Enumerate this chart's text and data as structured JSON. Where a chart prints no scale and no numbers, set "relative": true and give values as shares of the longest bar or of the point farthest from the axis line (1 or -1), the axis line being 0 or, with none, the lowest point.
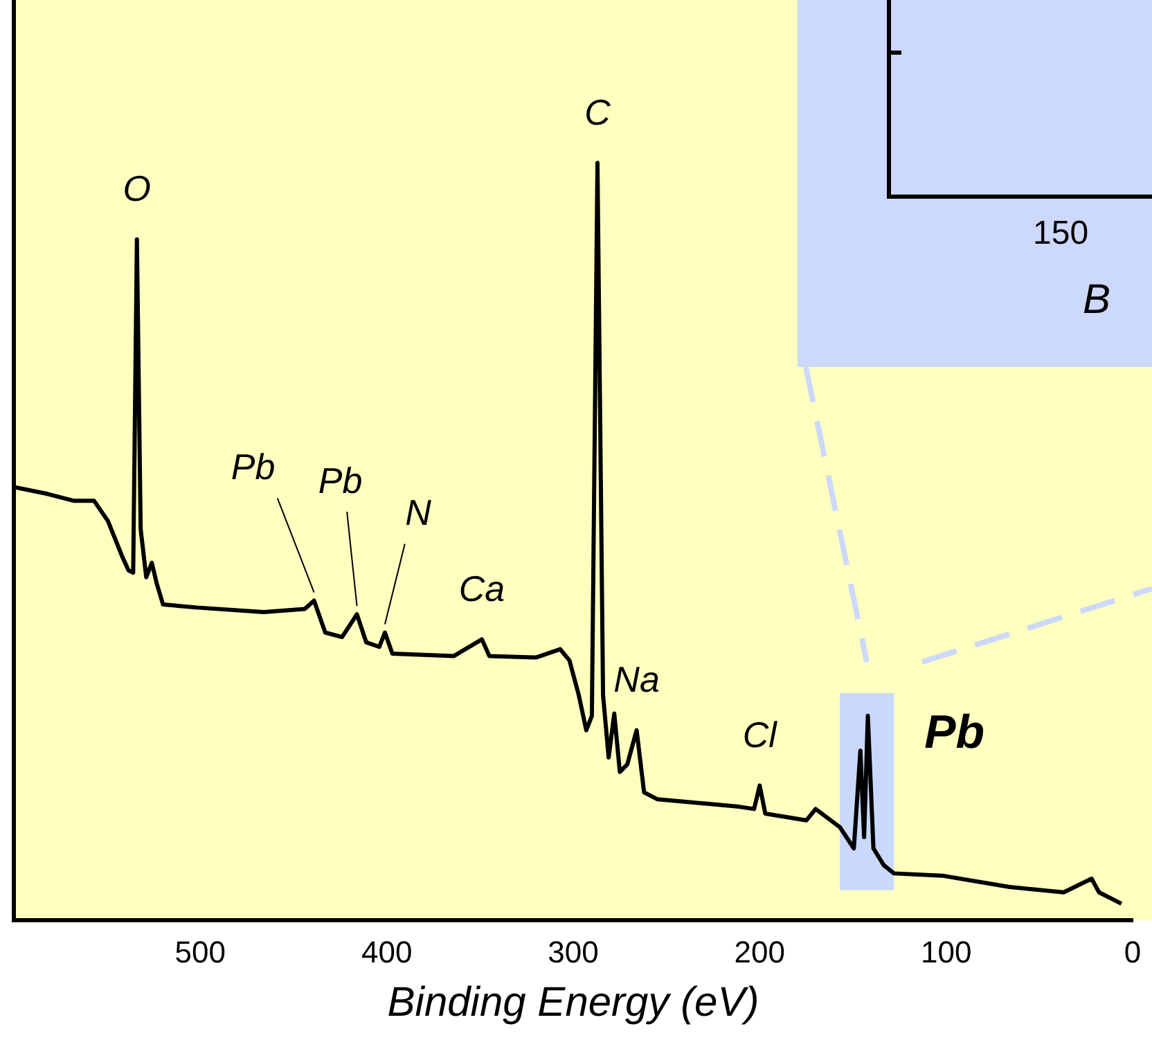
{
  "chart_data": [
    {
      "type": "line",
      "xlabel": "Binding Energy (eV)",
      "relative": true,
      "xlim": [
        600,
        0
      ],
      "xticks": [
        500,
        400,
        300,
        200,
        100,
        0
      ],
      "grid": false,
      "legend": false,
      "tick_labels": "x",
      "marker": "none",
      "line_style": "solid",
      "series": [
        {
          "color": "#000000",
          "x": [
            600,
            582,
            568,
            557,
            549.5,
            542,
            538.5,
            536,
            534,
            532,
            529,
            526,
            523.3,
            520,
            502,
            466,
            444,
            439,
            433,
            424,
            416,
            411,
            404,
            401,
            397,
            364,
            349,
            345,
            320,
            307,
            302,
            297,
            293,
            290,
            287,
            284,
            281,
            278,
            275,
            271,
            266,
            262,
            255,
            211,
            203,
            200,
            197,
            175,
            170,
            157,
            149.5,
            146,
            144,
            142,
            139,
            133.5,
            128,
            102,
            66,
            37,
            22,
            18,
            6
          ],
          "values": [
            0.572,
            0.563,
            0.554,
            0.554,
            0.527,
            0.481,
            0.462,
            0.459,
            0.899,
            0.517,
            0.453,
            0.472,
            0.444,
            0.417,
            0.413,
            0.407,
            0.411,
            0.422,
            0.38,
            0.374,
            0.404,
            0.367,
            0.361,
            0.38,
            0.352,
            0.349,
            0.371,
            0.349,
            0.347,
            0.358,
            0.343,
            0.297,
            0.251,
            0.27,
            1.0,
            0.297,
            0.215,
            0.273,
            0.196,
            0.206,
            0.251,
            0.169,
            0.16,
            0.15,
            0.147,
            0.178,
            0.141,
            0.132,
            0.147,
            0.123,
            0.095,
            0.224,
            0.11,
            0.27,
            0.095,
            0.073,
            0.062,
            0.059,
            0.044,
            0.037,
            0.055,
            0.037,
            0.022
          ]
        }
      ],
      "bands": [
        {
          "axis": "x",
          "from": 157,
          "to": 128,
          "label": "Pb",
          "color": "#c9d8fb"
        }
      ],
      "annotations": [
        {
          "text": "O",
          "x": 534,
          "y": 0.899
        },
        {
          "text": "C",
          "x": 287,
          "y": 1.0
        },
        {
          "text": "Pb",
          "x": 439,
          "y": 0.422
        },
        {
          "text": "Pb",
          "x": 416,
          "y": 0.404
        },
        {
          "text": "N",
          "x": 401,
          "y": 0.38
        },
        {
          "text": "Ca",
          "x": 349,
          "y": 0.371
        },
        {
          "text": "Na",
          "x": 266,
          "y": 0.251
        },
        {
          "text": "Cl",
          "x": 200,
          "y": 0.178
        }
      ]
    },
    {
      "type": "other",
      "annotations": [
        "150",
        "B"
      ]
    }
  ]
}
